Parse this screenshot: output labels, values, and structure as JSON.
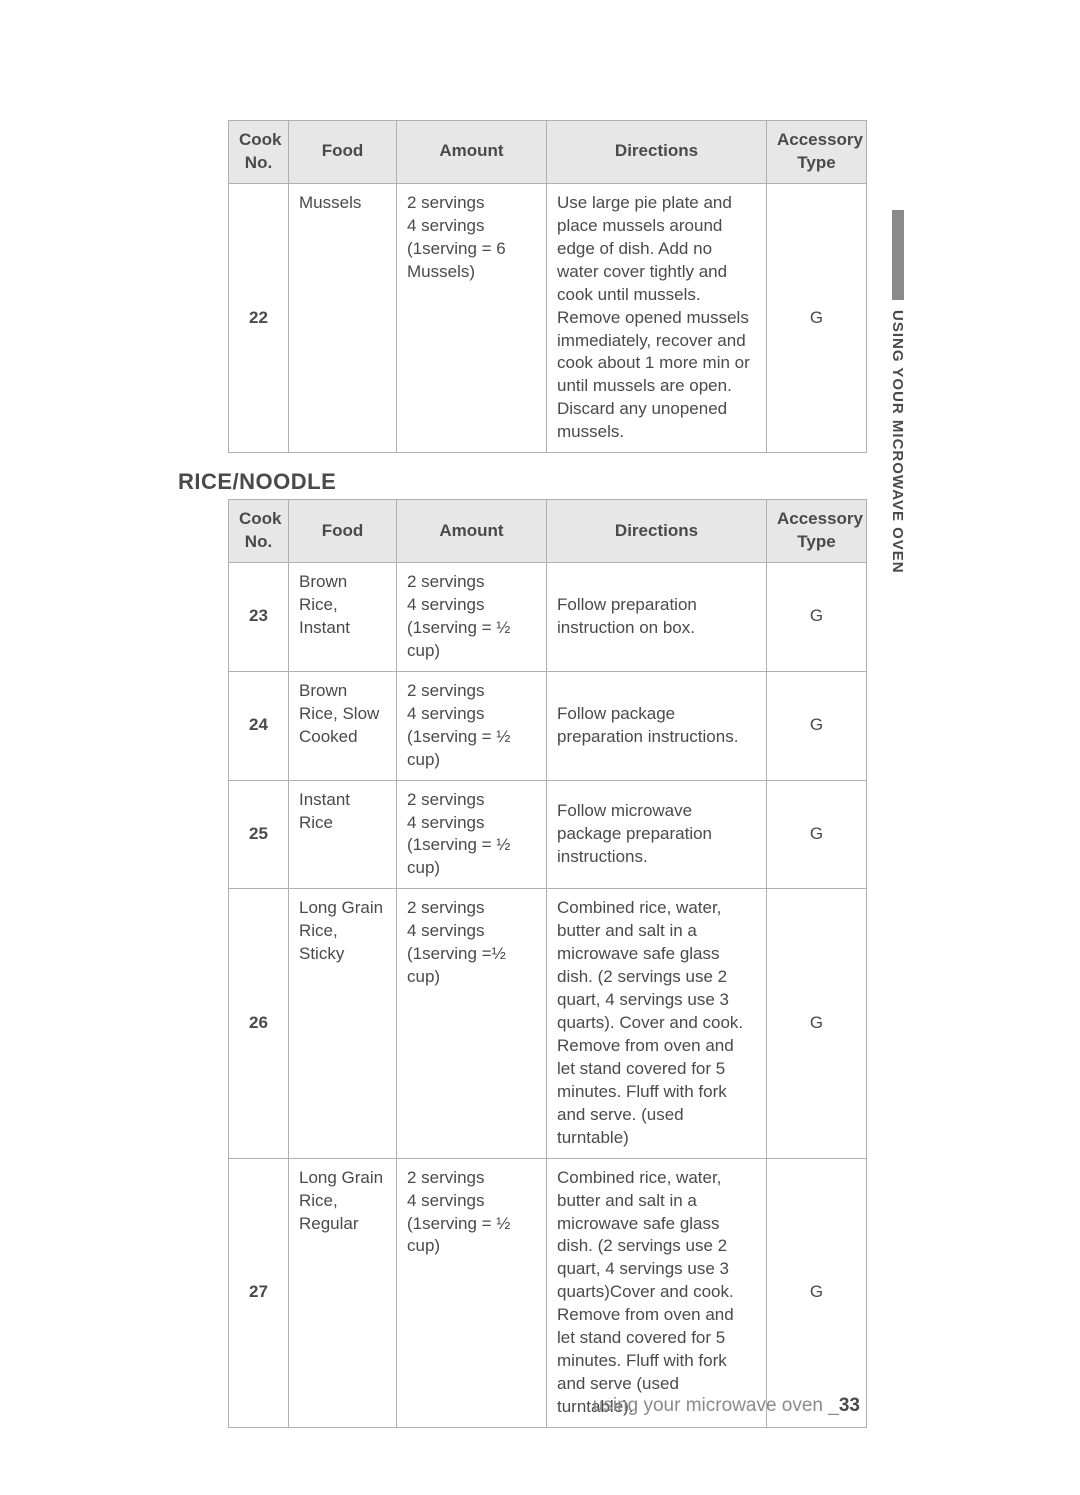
{
  "colors": {
    "header_bg": "#e7e7e7",
    "border": "#b0b0b0",
    "text": "#4a4a4a",
    "footer_text": "#8a8a8a",
    "tab_bar": "#8a8a8a",
    "page_bg": "#ffffff"
  },
  "typography": {
    "body_fontsize": 17,
    "heading_fontsize": 22,
    "side_label_fontsize": 15,
    "footer_fontsize": 19
  },
  "side_tab": {
    "label": "USING YOUR MICROWAVE OVEN"
  },
  "table1": {
    "headers": {
      "no": "Cook No.",
      "food": "Food",
      "amount": "Amount",
      "directions": "Directions",
      "accessory": "Accessory Type"
    },
    "row": {
      "no": "22",
      "food": "Mussels",
      "amount": "2 servings\n4 servings\n(1serving = 6 Mussels)",
      "directions": "Use large pie plate and place mussels around edge of dish. Add no water cover tightly and cook until mussels. Remove opened mussels immediately, recover and cook about 1 more min or until mussels are open. Discard any unopened mussels.",
      "accessory": "G"
    }
  },
  "section_heading": "RICE/NOODLE",
  "table2": {
    "headers": {
      "no": "Cook No.",
      "food": "Food",
      "amount": "Amount",
      "directions": "Directions",
      "accessory": "Accessory Type"
    },
    "rows": [
      {
        "no": "23",
        "food": "Brown Rice, Instant",
        "amount": "2 servings\n4 servings\n(1serving = ½ cup)",
        "directions": "Follow preparation instruction on box.",
        "accessory": "G"
      },
      {
        "no": "24",
        "food": "Brown Rice, Slow Cooked",
        "amount": "2 servings\n4 servings\n(1serving = ½ cup)",
        "directions": "Follow package preparation instructions.",
        "accessory": "G"
      },
      {
        "no": "25",
        "food": "Instant Rice",
        "amount": "2 servings\n4 servings\n(1serving = ½ cup)",
        "directions": "Follow microwave package preparation instructions.",
        "accessory": "G"
      },
      {
        "no": "26",
        "food": "Long Grain Rice, Sticky",
        "amount": "2 servings\n4 servings\n(1serving =½ cup)",
        "directions": "Combined rice, water, butter and salt in a microwave safe glass dish. (2 servings use 2 quart, 4 servings use 3 quarts). Cover and cook. Remove from oven and let stand covered for 5 minutes. Fluff with fork and serve. (used turntable)",
        "accessory": "G"
      },
      {
        "no": "27",
        "food": "Long Grain Rice, Regular",
        "amount": "2 servings\n4 servings\n(1serving =  ½ cup)",
        "directions": "Combined rice, water, butter and salt in a microwave safe glass dish. (2 servings use 2 quart, 4 servings use 3 quarts)Cover and cook. Remove from oven and let stand covered for 5 minutes. Fluff with fork and serve (used turntable).",
        "accessory": "G"
      }
    ]
  },
  "footer": {
    "text": "using your microwave oven _",
    "page": "33"
  }
}
